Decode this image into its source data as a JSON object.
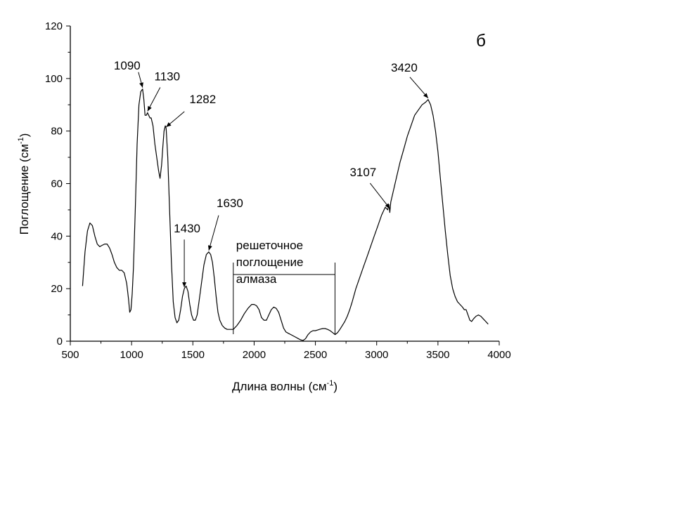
{
  "chart_data": {
    "type": "line",
    "title": "",
    "panel_label": "б",
    "xlabel": "Длина волны (см",
    "xlabel_sup": "-1",
    "xlabel_close": ")",
    "ylabel": "Поглощение (см",
    "ylabel_sup": "-1",
    "ylabel_close": ")",
    "xlim": [
      500,
      4000
    ],
    "ylim": [
      0,
      120
    ],
    "x_ticks": [
      500,
      1000,
      1500,
      2000,
      2500,
      3000,
      3500,
      4000
    ],
    "y_ticks": [
      0,
      20,
      40,
      60,
      80,
      100,
      120
    ],
    "x_minor_step": 250,
    "y_minor_step": 10,
    "grid": false,
    "line_color": "#000000",
    "series": [
      {
        "points": [
          [
            600,
            21
          ],
          [
            620,
            34
          ],
          [
            640,
            42
          ],
          [
            660,
            45
          ],
          [
            680,
            44
          ],
          [
            700,
            40
          ],
          [
            720,
            37
          ],
          [
            740,
            36
          ],
          [
            760,
            36.5
          ],
          [
            780,
            37
          ],
          [
            800,
            37
          ],
          [
            820,
            35.5
          ],
          [
            840,
            33
          ],
          [
            860,
            30
          ],
          [
            880,
            28
          ],
          [
            900,
            27
          ],
          [
            920,
            27
          ],
          [
            940,
            26
          ],
          [
            960,
            22
          ],
          [
            975,
            16
          ],
          [
            985,
            11
          ],
          [
            995,
            12
          ],
          [
            1005,
            18
          ],
          [
            1015,
            28
          ],
          [
            1030,
            50
          ],
          [
            1045,
            75
          ],
          [
            1060,
            90
          ],
          [
            1075,
            95
          ],
          [
            1090,
            96
          ],
          [
            1100,
            92
          ],
          [
            1110,
            86
          ],
          [
            1120,
            86
          ],
          [
            1130,
            87
          ],
          [
            1140,
            86
          ],
          [
            1150,
            85
          ],
          [
            1160,
            85
          ],
          [
            1175,
            82
          ],
          [
            1190,
            75
          ],
          [
            1205,
            70
          ],
          [
            1220,
            65
          ],
          [
            1232,
            62
          ],
          [
            1245,
            67
          ],
          [
            1255,
            74
          ],
          [
            1265,
            80
          ],
          [
            1275,
            82
          ],
          [
            1282,
            81
          ],
          [
            1295,
            70
          ],
          [
            1310,
            50
          ],
          [
            1325,
            30
          ],
          [
            1340,
            15
          ],
          [
            1355,
            9
          ],
          [
            1370,
            7
          ],
          [
            1385,
            8
          ],
          [
            1400,
            12
          ],
          [
            1415,
            17
          ],
          [
            1430,
            20
          ],
          [
            1445,
            21
          ],
          [
            1460,
            19
          ],
          [
            1475,
            14
          ],
          [
            1490,
            10
          ],
          [
            1505,
            8
          ],
          [
            1520,
            8
          ],
          [
            1535,
            10
          ],
          [
            1550,
            15
          ],
          [
            1570,
            22
          ],
          [
            1590,
            29
          ],
          [
            1610,
            33
          ],
          [
            1630,
            34
          ],
          [
            1645,
            33
          ],
          [
            1660,
            30
          ],
          [
            1675,
            24
          ],
          [
            1690,
            17
          ],
          [
            1705,
            11
          ],
          [
            1720,
            8
          ],
          [
            1740,
            6
          ],
          [
            1760,
            5
          ],
          [
            1780,
            4.5
          ],
          [
            1800,
            4.5
          ],
          [
            1830,
            4.5
          ],
          [
            1860,
            6
          ],
          [
            1890,
            8
          ],
          [
            1920,
            10.5
          ],
          [
            1950,
            12.5
          ],
          [
            1980,
            14
          ],
          [
            2000,
            14
          ],
          [
            2020,
            13.5
          ],
          [
            2040,
            12
          ],
          [
            2060,
            9
          ],
          [
            2080,
            8
          ],
          [
            2100,
            8
          ],
          [
            2120,
            10
          ],
          [
            2140,
            12
          ],
          [
            2160,
            13
          ],
          [
            2180,
            12.5
          ],
          [
            2200,
            11
          ],
          [
            2220,
            8
          ],
          [
            2240,
            5
          ],
          [
            2260,
            3.5
          ],
          [
            2280,
            3
          ],
          [
            2300,
            2.5
          ],
          [
            2320,
            2
          ],
          [
            2340,
            1.5
          ],
          [
            2360,
            1
          ],
          [
            2380,
            0.5
          ],
          [
            2400,
            0.3
          ],
          [
            2420,
            1
          ],
          [
            2440,
            2.5
          ],
          [
            2460,
            3.5
          ],
          [
            2480,
            4
          ],
          [
            2500,
            4
          ],
          [
            2520,
            4.3
          ],
          [
            2540,
            4.6
          ],
          [
            2560,
            4.8
          ],
          [
            2580,
            4.8
          ],
          [
            2600,
            4.5
          ],
          [
            2620,
            4
          ],
          [
            2640,
            3.3
          ],
          [
            2660,
            2.5
          ],
          [
            2680,
            3.2
          ],
          [
            2700,
            4.5
          ],
          [
            2720,
            6
          ],
          [
            2740,
            7.5
          ],
          [
            2760,
            9.5
          ],
          [
            2780,
            12
          ],
          [
            2800,
            15
          ],
          [
            2830,
            20
          ],
          [
            2860,
            24
          ],
          [
            2890,
            28
          ],
          [
            2920,
            32
          ],
          [
            2950,
            36
          ],
          [
            2980,
            40
          ],
          [
            3010,
            44
          ],
          [
            3040,
            48
          ],
          [
            3070,
            51
          ],
          [
            3090,
            50
          ],
          [
            3100,
            52
          ],
          [
            3107,
            49
          ],
          [
            3115,
            53
          ],
          [
            3130,
            56
          ],
          [
            3160,
            62
          ],
          [
            3190,
            68
          ],
          [
            3220,
            73
          ],
          [
            3250,
            78
          ],
          [
            3280,
            82
          ],
          [
            3310,
            86
          ],
          [
            3340,
            88
          ],
          [
            3370,
            90
          ],
          [
            3400,
            91
          ],
          [
            3420,
            92
          ],
          [
            3440,
            90
          ],
          [
            3460,
            86
          ],
          [
            3480,
            80
          ],
          [
            3500,
            72
          ],
          [
            3520,
            62
          ],
          [
            3540,
            52
          ],
          [
            3560,
            42
          ],
          [
            3580,
            33
          ],
          [
            3600,
            25
          ],
          [
            3620,
            20
          ],
          [
            3640,
            17
          ],
          [
            3660,
            15
          ],
          [
            3680,
            14
          ],
          [
            3700,
            13
          ],
          [
            3715,
            12
          ],
          [
            3730,
            12
          ],
          [
            3745,
            10
          ],
          [
            3760,
            8
          ],
          [
            3775,
            7.5
          ],
          [
            3790,
            8.5
          ],
          [
            3810,
            9.5
          ],
          [
            3830,
            10
          ],
          [
            3850,
            9.5
          ],
          [
            3870,
            8.5
          ],
          [
            3890,
            7.5
          ],
          [
            3910,
            6.5
          ]
        ]
      }
    ],
    "annotations": [
      {
        "text": "1090",
        "x": 1090,
        "y": 96
      },
      {
        "text": "1130",
        "x": 1130,
        "y": 87
      },
      {
        "text": "1282",
        "x": 1282,
        "y": 81
      },
      {
        "text": "1430",
        "x": 1430,
        "y": 20
      },
      {
        "text": "1630",
        "x": 1630,
        "y": 34
      },
      {
        "text": "3107",
        "x": 3107,
        "y": 50
      },
      {
        "text": "3420",
        "x": 3420,
        "y": 92
      }
    ],
    "region": {
      "x_from": 1830,
      "x_to": 2660,
      "label_lines": [
        "решеточное",
        "поглощение",
        "алмаза"
      ]
    }
  }
}
